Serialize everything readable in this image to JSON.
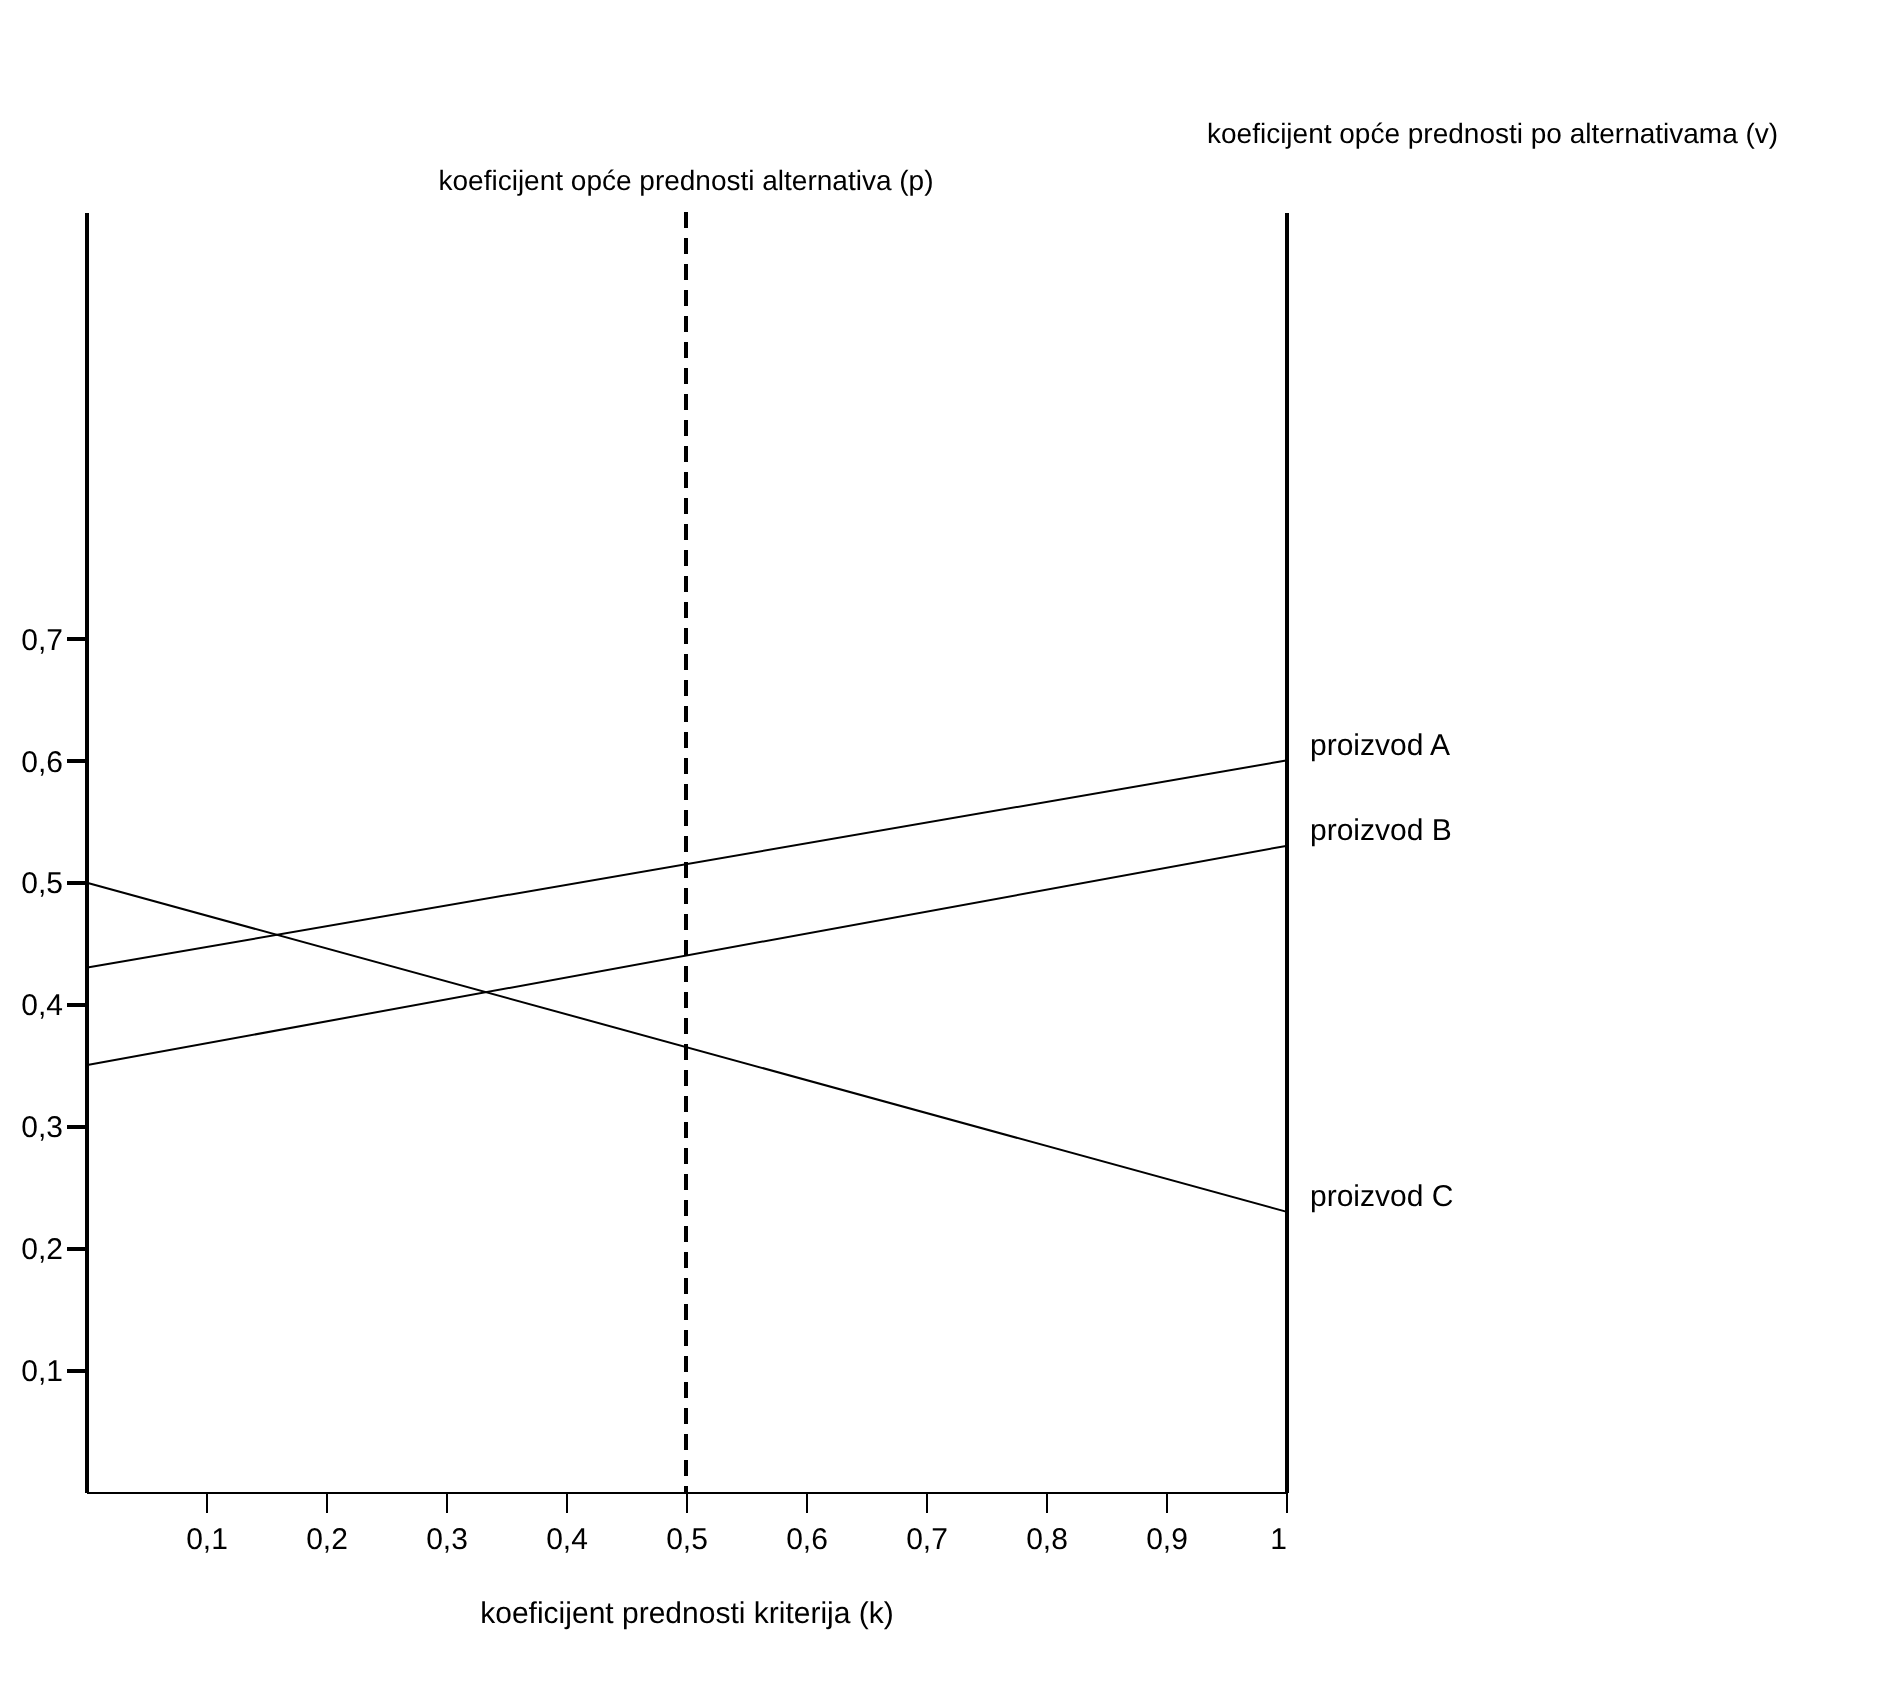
{
  "chart_data": {
    "type": "line",
    "xlabel": "koeficijent prednosti kriterija (k)",
    "ylabel": null,
    "y2label": "koeficijent opće prednosti po alternativama (v)",
    "x": [
      0,
      1
    ],
    "series": [
      {
        "name": "proizvod A",
        "color": "#000000",
        "values": [
          0.43,
          0.6
        ]
      },
      {
        "name": "proizvod B",
        "color": "#000000",
        "values": [
          0.35,
          0.53
        ]
      },
      {
        "name": "proizvod C",
        "color": "#000000",
        "values": [
          0.5,
          0.23
        ]
      }
    ],
    "xlim": [
      0,
      1
    ],
    "xticks": [
      {
        "value": 0.1,
        "label": "0,1"
      },
      {
        "value": 0.2,
        "label": "0,2"
      },
      {
        "value": 0.3,
        "label": "0,3"
      },
      {
        "value": 0.4,
        "label": "0,4"
      },
      {
        "value": 0.5,
        "label": "0,5"
      },
      {
        "value": 0.6,
        "label": "0,6"
      },
      {
        "value": 0.7,
        "label": "0,7"
      },
      {
        "value": 0.8,
        "label": "0,8"
      },
      {
        "value": 0.9,
        "label": "0,9"
      },
      {
        "value": 1,
        "label": "1"
      }
    ],
    "ylim": [
      0,
      1.05
    ],
    "yticks": [
      {
        "value": 0.1,
        "label": "0,1"
      },
      {
        "value": 0.2,
        "label": "0,2"
      },
      {
        "value": 0.3,
        "label": "0,3"
      },
      {
        "value": 0.4,
        "label": "0,4"
      },
      {
        "value": 0.5,
        "label": "0,5"
      },
      {
        "value": 0.6,
        "label": "0,6"
      },
      {
        "value": 0.7,
        "label": "0,7"
      }
    ],
    "ref_lines": [
      {
        "axis": "x",
        "value": 0.5,
        "label": "koeficijent opće prednosti alternativa (p)",
        "line_style": "dashed"
      }
    ],
    "grid": false,
    "marker": "none",
    "line_style": "solid"
  }
}
